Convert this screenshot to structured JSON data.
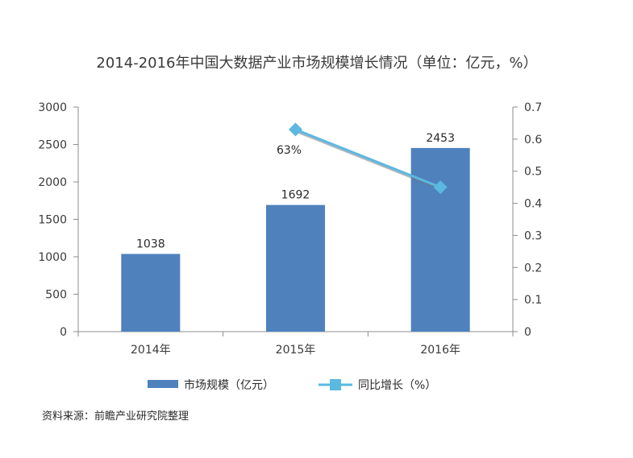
{
  "chart_data": {
    "type": "bar",
    "title": "2014-2016年中国大数据产业市场规模增长情况（单位：亿元，%）",
    "categories": [
      "2014年",
      "2015年",
      "2016年"
    ],
    "series": [
      {
        "name": "市场规模（亿元）",
        "type": "bar",
        "axis": "left",
        "values": [
          1038,
          1692,
          2453
        ],
        "labels": [
          "1038",
          "1692",
          "2453"
        ],
        "color": "#4f81bd"
      },
      {
        "name": "同比增长（%）",
        "type": "line",
        "axis": "right",
        "values": [
          null,
          0.63,
          0.45
        ],
        "labels": [
          "",
          "63%",
          ""
        ],
        "color": "#5bb8e0"
      }
    ],
    "y_left": {
      "ylim": [
        0,
        3000
      ],
      "ticks": [
        "0",
        "500",
        "1000",
        "1500",
        "2000",
        "2500",
        "3000"
      ]
    },
    "y_right": {
      "ylim": [
        0,
        0.7
      ],
      "ticks": [
        "0",
        "0.1",
        "0.2",
        "0.3",
        "0.4",
        "0.5",
        "0.6",
        "0.7"
      ]
    },
    "grid": false,
    "legend_position": "bottom"
  },
  "source": "资料来源：前瞻产业研究院整理"
}
